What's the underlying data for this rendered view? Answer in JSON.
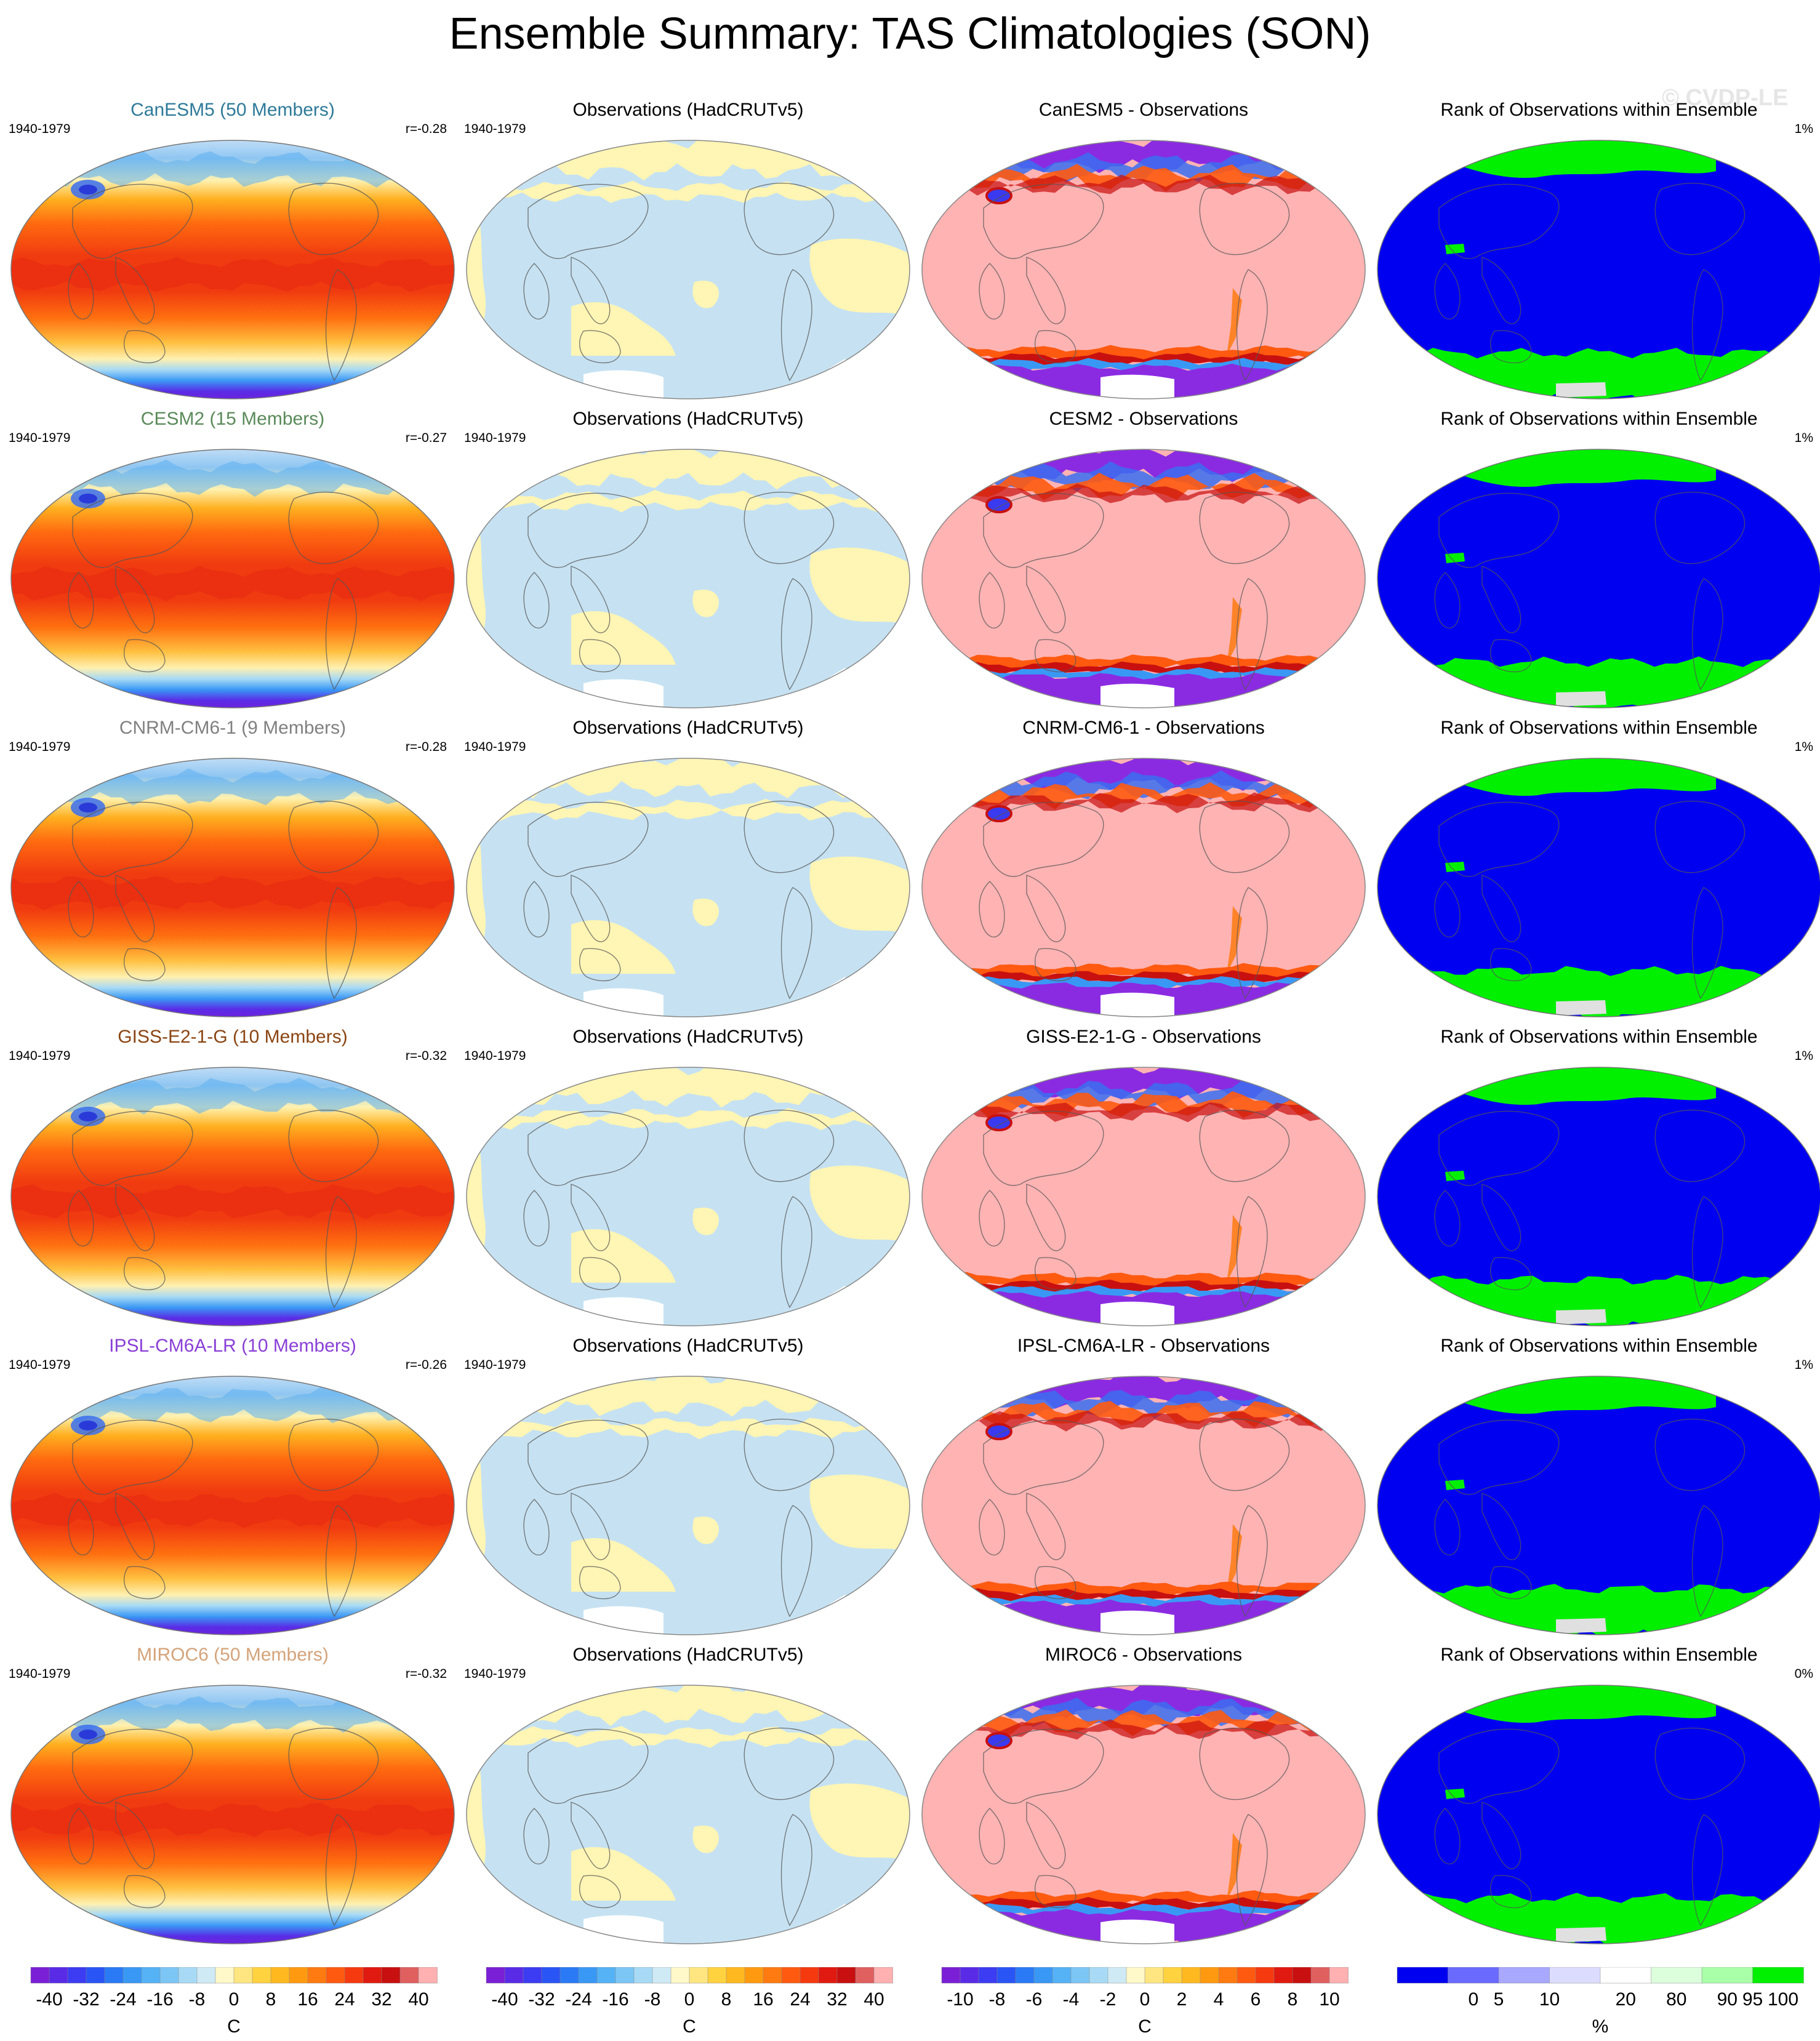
{
  "title": "Ensemble Summary: TAS Climatologies (SON)",
  "watermark": "© CVDP-LE",
  "colors": {
    "obs_blue": "#c6e2f2",
    "obs_yellow": "#fff5b4",
    "bias_pink": "#ffb3b3",
    "bias_purple": "#8a2be2",
    "rank_blue": "#0000f0",
    "rank_green": "#00f000",
    "rank_gray": "#e0e0e0"
  },
  "rows": [
    {
      "model": {
        "title": "CanESM5 (50 Members)",
        "title_color": "#2e7a99",
        "period": "1940-1979",
        "corr": "r=-0.28"
      },
      "obs": {
        "title": "Observations (HadCRUTv5)",
        "period": "1940-1979"
      },
      "bias": {
        "title": "CanESM5 - Observations"
      },
      "rank": {
        "title": "Rank of Observations within Ensemble",
        "value": "1%"
      }
    },
    {
      "model": {
        "title": "CESM2 (15 Members)",
        "title_color": "#5a8a5a",
        "period": "1940-1979",
        "corr": "r=-0.27"
      },
      "obs": {
        "title": "Observations (HadCRUTv5)",
        "period": "1940-1979"
      },
      "bias": {
        "title": "CESM2 - Observations"
      },
      "rank": {
        "title": "Rank of Observations within Ensemble",
        "value": "1%"
      }
    },
    {
      "model": {
        "title": "CNRM-CM6-1 (9 Members)",
        "title_color": "#808080",
        "period": "1940-1979",
        "corr": "r=-0.28"
      },
      "obs": {
        "title": "Observations (HadCRUTv5)",
        "period": "1940-1979"
      },
      "bias": {
        "title": "CNRM-CM6-1 - Observations"
      },
      "rank": {
        "title": "Rank of Observations within Ensemble",
        "value": "1%"
      }
    },
    {
      "model": {
        "title": "GISS-E2-1-G (10 Members)",
        "title_color": "#8b4513",
        "period": "1940-1979",
        "corr": "r=-0.32"
      },
      "obs": {
        "title": "Observations (HadCRUTv5)",
        "period": "1940-1979"
      },
      "bias": {
        "title": "GISS-E2-1-G - Observations"
      },
      "rank": {
        "title": "Rank of Observations within Ensemble",
        "value": "1%"
      }
    },
    {
      "model": {
        "title": "IPSL-CM6A-LR (10 Members)",
        "title_color": "#8a3fd6",
        "period": "1940-1979",
        "corr": "r=-0.26"
      },
      "obs": {
        "title": "Observations (HadCRUTv5)",
        "period": "1940-1979"
      },
      "bias": {
        "title": "IPSL-CM6A-LR - Observations"
      },
      "rank": {
        "title": "Rank of Observations within Ensemble",
        "value": "1%"
      }
    },
    {
      "model": {
        "title": "MIROC6 (50 Members)",
        "title_color": "#d4a37a",
        "period": "1940-1979",
        "corr": "r=-0.32"
      },
      "obs": {
        "title": "Observations (HadCRUTv5)",
        "period": "1940-1979"
      },
      "bias": {
        "title": "MIROC6 - Observations"
      },
      "rank": {
        "title": "Rank of Observations within Ensemble",
        "value": "0%"
      }
    }
  ],
  "colorbars": [
    {
      "unit": "C",
      "ticks": [
        "-40",
        "-32",
        "-24",
        "-16",
        "-8",
        "0",
        "8",
        "16",
        "24",
        "32",
        "40"
      ],
      "colors": [
        "#7a1fd6",
        "#5a2be6",
        "#3c3cf2",
        "#2a55f5",
        "#2a7af5",
        "#3a98f5",
        "#55b2f5",
        "#7cc6f5",
        "#a8daf5",
        "#cfeaf5",
        "#fff8c8",
        "#ffe680",
        "#ffd240",
        "#ffb820",
        "#ff9a10",
        "#ff7a10",
        "#ff5a10",
        "#f53a10",
        "#e01a10",
        "#c81010",
        "#e06060",
        "#ffb0b0"
      ]
    },
    {
      "unit": "C",
      "ticks": [
        "-40",
        "-32",
        "-24",
        "-16",
        "-8",
        "0",
        "8",
        "16",
        "24",
        "32",
        "40"
      ],
      "colors": [
        "#7a1fd6",
        "#5a2be6",
        "#3c3cf2",
        "#2a55f5",
        "#2a7af5",
        "#3a98f5",
        "#55b2f5",
        "#7cc6f5",
        "#a8daf5",
        "#cfeaf5",
        "#fff8c8",
        "#ffe680",
        "#ffd240",
        "#ffb820",
        "#ff9a10",
        "#ff7a10",
        "#ff5a10",
        "#f53a10",
        "#e01a10",
        "#c81010",
        "#e06060",
        "#ffb0b0"
      ]
    },
    {
      "unit": "C",
      "ticks": [
        "-10",
        "-8",
        "-6",
        "-4",
        "-2",
        "0",
        "2",
        "4",
        "6",
        "8",
        "10"
      ],
      "colors": [
        "#7a1fd6",
        "#5a2be6",
        "#3c3cf2",
        "#2a55f5",
        "#2a7af5",
        "#3a98f5",
        "#55b2f5",
        "#7cc6f5",
        "#a8daf5",
        "#cfeaf5",
        "#fff8c8",
        "#ffe680",
        "#ffd240",
        "#ffb820",
        "#ff9a10",
        "#ff7a10",
        "#ff5a10",
        "#f53a10",
        "#e01a10",
        "#c81010",
        "#e06060",
        "#ffb0b0"
      ]
    },
    {
      "unit": "%",
      "ticks": [
        "0",
        "5",
        "10",
        "20",
        "80",
        "90",
        "95",
        "100"
      ],
      "colors": [
        "#0000f0",
        "#6a6aff",
        "#a8a8ff",
        "#dcdcff",
        "#ffffff",
        "#dcffdc",
        "#a8ffa8",
        "#00f000"
      ]
    }
  ]
}
